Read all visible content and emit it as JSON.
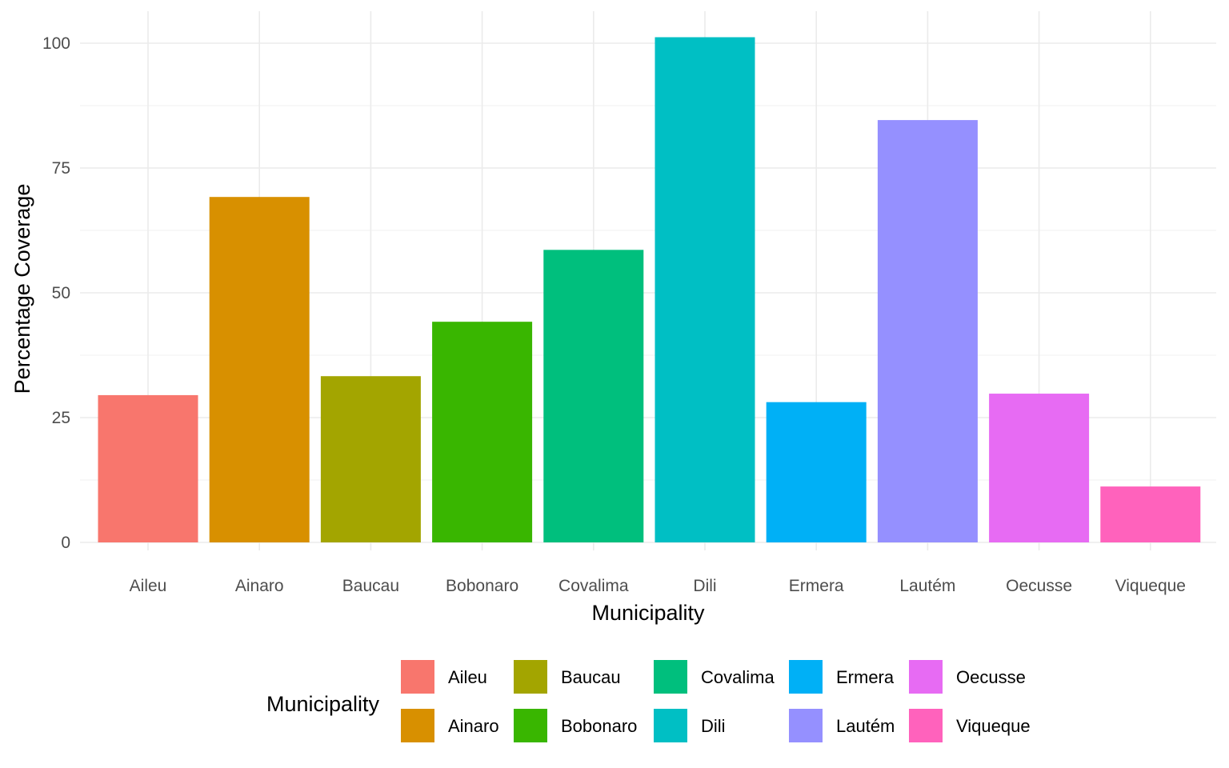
{
  "chart_data": {
    "type": "bar",
    "xlabel": "Municipality",
    "ylabel": "Percentage Coverage",
    "ylim": [
      0,
      106
    ],
    "yticks": [
      0,
      25,
      50,
      75,
      100
    ],
    "grid": true,
    "categories": [
      "Aileu",
      "Ainaro",
      "Baucau",
      "Bobonaro",
      "Covalima",
      "Dili",
      "Ermera",
      "Lautém",
      "Oecusse",
      "Viqueque"
    ],
    "values": [
      29.5,
      69.2,
      33.3,
      44.2,
      58.6,
      101.2,
      28.1,
      84.6,
      29.8,
      11.2
    ],
    "colors": [
      "#F8766D",
      "#D89000",
      "#A3A500",
      "#39B600",
      "#00BF7D",
      "#00BFC4",
      "#00B0F6",
      "#9590FF",
      "#E76BF3",
      "#FF62BC"
    ],
    "legend": {
      "title": "Municipality",
      "position": "bottom",
      "entries": [
        "Aileu",
        "Ainaro",
        "Baucau",
        "Bobonaro",
        "Covalima",
        "Dili",
        "Ermera",
        "Lautém",
        "Oecusse",
        "Viqueque"
      ]
    }
  }
}
